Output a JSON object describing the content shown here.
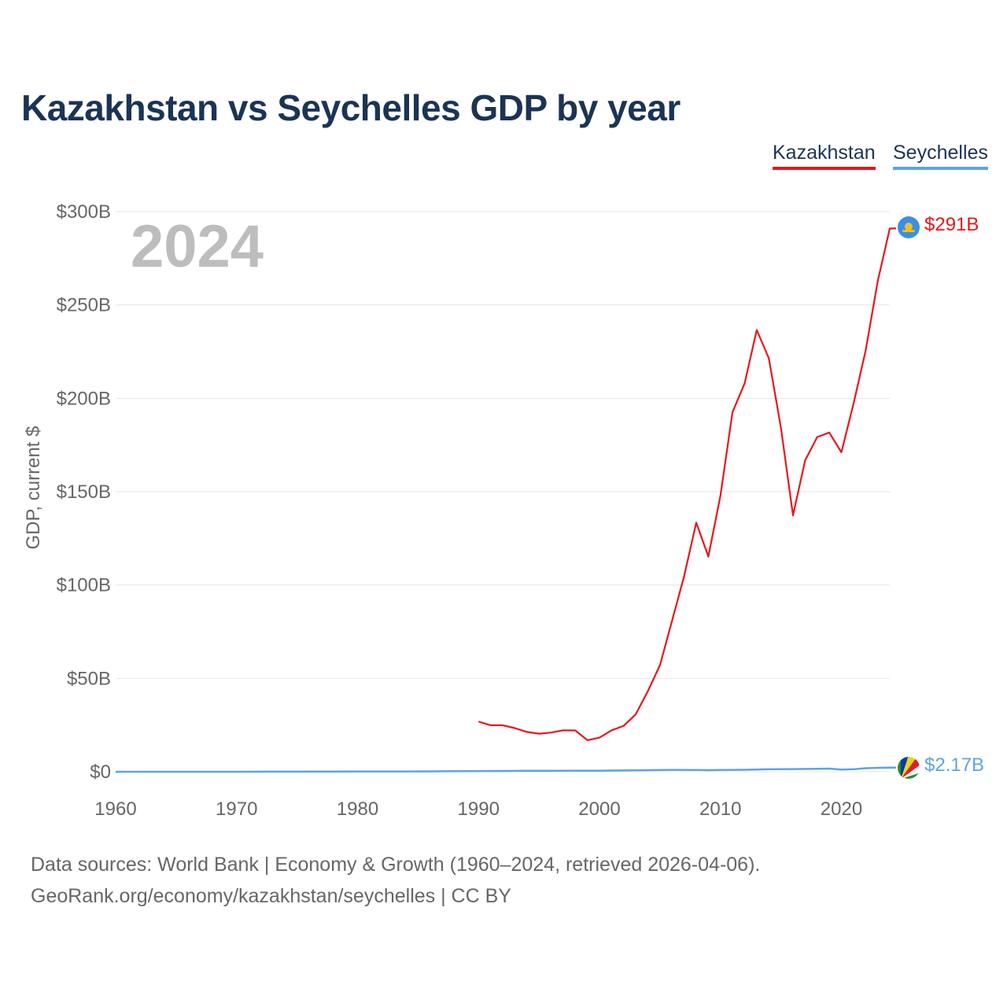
{
  "title": "Kazakhstan vs Seychelles GDP by year",
  "legend": [
    {
      "name": "Kazakhstan",
      "color": "#e8161b"
    },
    {
      "name": "Seychelles",
      "color": "#5ea3e4"
    }
  ],
  "year_label": "2024",
  "end_labels": {
    "kazakhstan": "$291B",
    "seychelles": "$2.17B"
  },
  "flags": {
    "kazakhstan": "kazakhstan-flag-icon",
    "seychelles": "seychelles-flag-icon"
  },
  "source_line_1": "Data sources: World Bank | Economy & Growth (1960–2024, retrieved 2026-04-06).",
  "source_line_2": "GeoRank.org/economy/kazakhstan/seychelles | CC BY",
  "chart_data": {
    "type": "line",
    "title": "Kazakhstan vs Seychelles GDP by year",
    "xlabel": "",
    "ylabel": "GDP, current $",
    "xlim": [
      1960,
      2024
    ],
    "ylim": [
      0,
      300
    ],
    "y_unit": "billion USD",
    "x_ticks": [
      1960,
      1970,
      1980,
      1990,
      2000,
      2010,
      2020
    ],
    "y_ticks": [
      0,
      50,
      100,
      150,
      200,
      250,
      300
    ],
    "y_tick_labels": [
      "$0",
      "$50B",
      "$100B",
      "$150B",
      "$200B",
      "$250B",
      "$300B"
    ],
    "grid": true,
    "legend_position": "top-right",
    "series": [
      {
        "name": "Kazakhstan",
        "color": "#e8161b",
        "x": [
          1990,
          1991,
          1992,
          1993,
          1994,
          1995,
          1996,
          1997,
          1998,
          1999,
          2000,
          2001,
          2002,
          2003,
          2004,
          2005,
          2006,
          2007,
          2008,
          2009,
          2010,
          2011,
          2012,
          2013,
          2014,
          2015,
          2016,
          2017,
          2018,
          2019,
          2020,
          2021,
          2022,
          2023,
          2024
        ],
        "values": [
          26.9,
          24.9,
          24.9,
          23.4,
          21.3,
          20.4,
          21.0,
          22.2,
          22.1,
          16.9,
          18.3,
          22.2,
          24.6,
          30.8,
          43.2,
          57.1,
          81.0,
          104.8,
          133.4,
          115.3,
          148.0,
          192.6,
          208.0,
          236.6,
          221.4,
          184.4,
          137.3,
          166.8,
          179.3,
          181.7,
          171.1,
          197.1,
          225.5,
          262.6,
          291.0
        ]
      },
      {
        "name": "Seychelles",
        "color": "#5ea3e4",
        "x": [
          1960,
          1962,
          1964,
          1966,
          1968,
          1970,
          1972,
          1974,
          1976,
          1978,
          1980,
          1982,
          1984,
          1986,
          1988,
          1990,
          1992,
          1994,
          1996,
          1998,
          2000,
          2002,
          2004,
          2006,
          2008,
          2009,
          2010,
          2012,
          2014,
          2016,
          2018,
          2019,
          2020,
          2021,
          2022,
          2023,
          2024
        ],
        "values": [
          0.01,
          0.01,
          0.01,
          0.01,
          0.01,
          0.02,
          0.03,
          0.05,
          0.07,
          0.11,
          0.15,
          0.15,
          0.16,
          0.21,
          0.29,
          0.37,
          0.43,
          0.51,
          0.51,
          0.61,
          0.61,
          0.7,
          0.84,
          1.02,
          0.97,
          0.85,
          0.97,
          1.06,
          1.39,
          1.43,
          1.59,
          1.7,
          1.13,
          1.34,
          1.89,
          2.1,
          2.17
        ]
      }
    ]
  }
}
